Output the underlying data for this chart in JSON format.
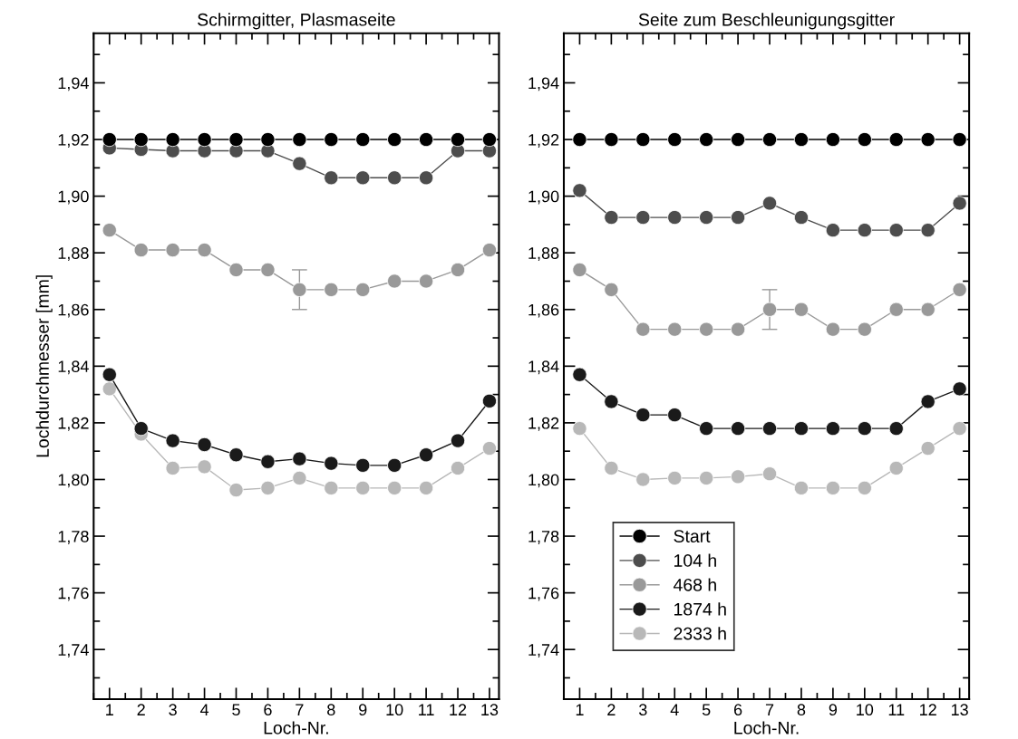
{
  "chart_data": [
    {
      "type": "line",
      "title": "Schirmgitter, Plasmaseite",
      "xlabel": "Loch-Nr.",
      "ylabel": "Lochdurchmesser [mm]",
      "marker": "circle",
      "line_style": "solid",
      "grid": false,
      "legend": false,
      "x": [
        1,
        2,
        3,
        4,
        5,
        6,
        7,
        8,
        9,
        10,
        11,
        12,
        13
      ],
      "xlim": [
        0.5,
        13.3
      ],
      "xticks": [
        1,
        2,
        3,
        4,
        5,
        6,
        7,
        8,
        9,
        10,
        11,
        12,
        13
      ],
      "ylim": [
        1.7225,
        1.9575
      ],
      "yticks": [
        {
          "value": 1.74,
          "label": "1,74"
        },
        {
          "value": 1.76,
          "label": "1,76"
        },
        {
          "value": 1.78,
          "label": "1,78"
        },
        {
          "value": 1.8,
          "label": "1,80"
        },
        {
          "value": 1.82,
          "label": "1,82"
        },
        {
          "value": 1.84,
          "label": "1,84"
        },
        {
          "value": 1.86,
          "label": "1,86"
        },
        {
          "value": 1.88,
          "label": "1,88"
        },
        {
          "value": 1.9,
          "label": "1,90"
        },
        {
          "value": 1.92,
          "label": "1,92"
        },
        {
          "value": 1.94,
          "label": "1,94"
        }
      ],
      "series": [
        {
          "color": "#000000",
          "values": [
            1.92,
            1.92,
            1.92,
            1.92,
            1.92,
            1.92,
            1.92,
            1.92,
            1.92,
            1.92,
            1.92,
            1.92,
            1.92
          ]
        },
        {
          "color": "#4d4d4d",
          "values": [
            1.917,
            1.9165,
            1.916,
            1.916,
            1.916,
            1.916,
            1.9115,
            1.9065,
            1.9065,
            1.9065,
            1.9065,
            1.916,
            1.916
          ]
        },
        {
          "color": "#999999",
          "values": [
            1.888,
            1.881,
            1.881,
            1.881,
            1.874,
            1.874,
            1.867,
            1.867,
            1.867,
            1.87,
            1.87,
            1.874,
            1.881
          ],
          "errors": [
            null,
            null,
            null,
            null,
            null,
            null,
            0.007,
            null,
            null,
            null,
            null,
            null,
            null
          ]
        },
        {
          "color": "#1a1a1a",
          "values": [
            1.837,
            1.818,
            1.8137,
            1.8123,
            1.8087,
            1.8063,
            1.8073,
            1.8057,
            1.805,
            1.805,
            1.8087,
            1.8137,
            1.8277
          ]
        },
        {
          "color": "#b8b8b8",
          "values": [
            1.832,
            1.816,
            1.804,
            1.8045,
            1.7963,
            1.797,
            1.8005,
            1.797,
            1.797,
            1.797,
            1.797,
            1.804,
            1.811
          ]
        }
      ]
    },
    {
      "type": "line",
      "title": "Seite zum Beschleunigungsgitter",
      "xlabel": "Loch-Nr.",
      "marker": "circle",
      "line_style": "solid",
      "grid": false,
      "legend": "bottom left",
      "x": [
        1,
        2,
        3,
        4,
        5,
        6,
        7,
        8,
        9,
        10,
        11,
        12,
        13
      ],
      "xlim": [
        0.5,
        13.3
      ],
      "xticks": [
        1,
        2,
        3,
        4,
        5,
        6,
        7,
        8,
        9,
        10,
        11,
        12,
        13
      ],
      "ylim": [
        1.7225,
        1.9575
      ],
      "yticks": [
        {
          "value": 1.74,
          "label": "1,74"
        },
        {
          "value": 1.76,
          "label": "1,76"
        },
        {
          "value": 1.78,
          "label": "1,78"
        },
        {
          "value": 1.8,
          "label": "1,80"
        },
        {
          "value": 1.82,
          "label": "1,82"
        },
        {
          "value": 1.84,
          "label": "1,84"
        },
        {
          "value": 1.86,
          "label": "1,86"
        },
        {
          "value": 1.88,
          "label": "1,88"
        },
        {
          "value": 1.9,
          "label": "1,90"
        },
        {
          "value": 1.92,
          "label": "1,92"
        },
        {
          "value": 1.94,
          "label": "1,94"
        }
      ],
      "series": [
        {
          "name": "Start",
          "color": "#000000",
          "values": [
            1.92,
            1.92,
            1.92,
            1.92,
            1.92,
            1.92,
            1.92,
            1.92,
            1.92,
            1.92,
            1.92,
            1.92,
            1.92
          ]
        },
        {
          "name": "104 h",
          "color": "#4d4d4d",
          "values": [
            1.902,
            1.8925,
            1.8925,
            1.8925,
            1.8925,
            1.8925,
            1.8975,
            1.8925,
            1.888,
            1.888,
            1.888,
            1.888,
            1.8975
          ]
        },
        {
          "name": "468 h",
          "color": "#999999",
          "values": [
            1.874,
            1.867,
            1.853,
            1.853,
            1.853,
            1.853,
            1.86,
            1.86,
            1.853,
            1.853,
            1.86,
            1.86,
            1.867
          ],
          "errors": [
            null,
            null,
            null,
            null,
            null,
            null,
            0.007,
            null,
            null,
            null,
            null,
            null,
            null
          ]
        },
        {
          "name": "1874 h",
          "color": "#1a1a1a",
          "values": [
            1.837,
            1.8275,
            1.8228,
            1.8228,
            1.818,
            1.818,
            1.818,
            1.818,
            1.818,
            1.818,
            1.818,
            1.8275,
            1.832
          ]
        },
        {
          "name": "2333 h",
          "color": "#b8b8b8",
          "values": [
            1.818,
            1.804,
            1.8,
            1.8005,
            1.8005,
            1.801,
            1.802,
            1.797,
            1.797,
            1.797,
            1.804,
            1.811,
            1.818
          ]
        }
      ]
    }
  ]
}
